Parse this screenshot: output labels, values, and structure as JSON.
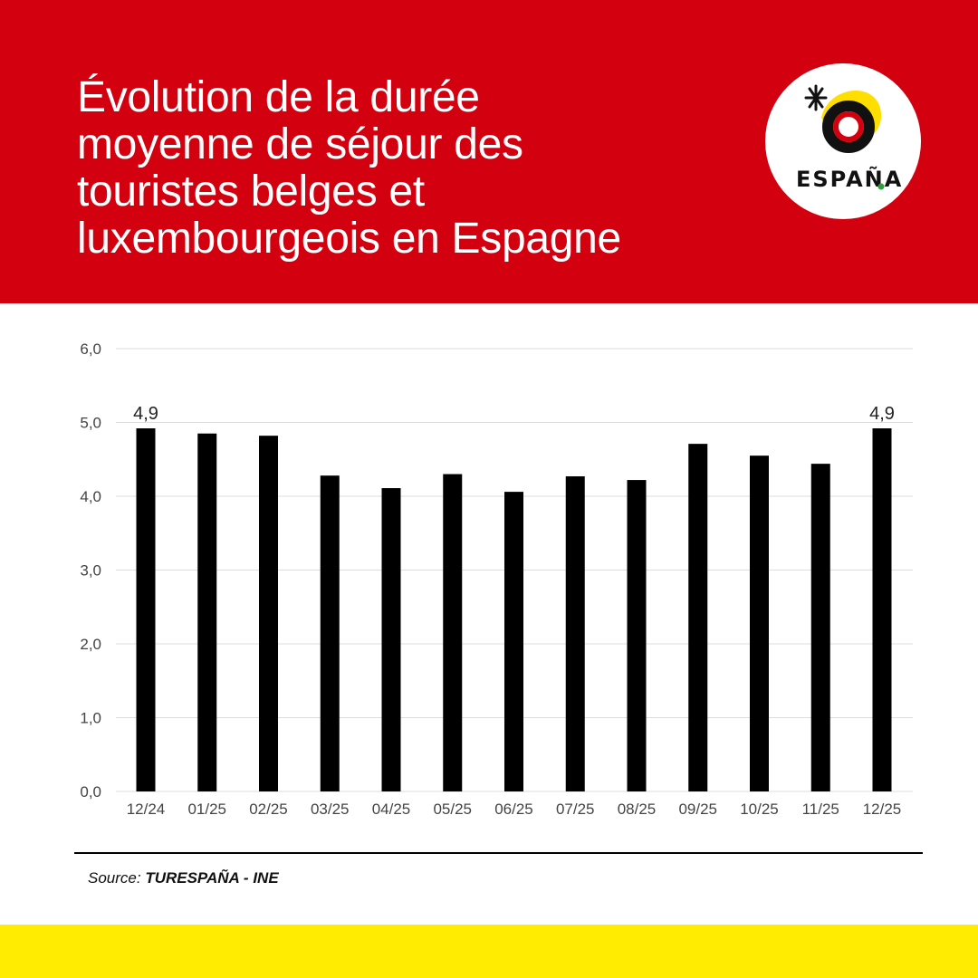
{
  "header": {
    "title": "Évolution de la durée\nmoyenne de séjour des\ntouristes belges et\nluxembourgeois en Espagne",
    "logo_text": "ESPAÑA"
  },
  "colors": {
    "header_red": "#d3000f",
    "footer_yellow": "#ffec00",
    "bar": "#000000",
    "gridline": "#dddddd"
  },
  "chart_data": {
    "type": "bar",
    "categories": [
      "12/24",
      "01/25",
      "02/25",
      "03/25",
      "04/25",
      "05/25",
      "06/25",
      "07/25",
      "08/25",
      "09/25",
      "10/25",
      "11/25",
      "12/25"
    ],
    "values": [
      4.92,
      4.85,
      4.82,
      4.28,
      4.11,
      4.3,
      4.06,
      4.27,
      4.22,
      4.71,
      4.55,
      4.44,
      4.92
    ],
    "data_labels": [
      {
        "index": 0,
        "text": "4,9"
      },
      {
        "index": 12,
        "text": "4,9"
      }
    ],
    "y_ticks": [
      "0,0",
      "1,0",
      "2,0",
      "3,0",
      "4,0",
      "5,0",
      "6,0"
    ],
    "ylim": [
      0,
      6
    ],
    "grid": true,
    "legend": "none"
  },
  "source": {
    "prefix": "Source: ",
    "name": "TURESPAÑA - INE"
  }
}
